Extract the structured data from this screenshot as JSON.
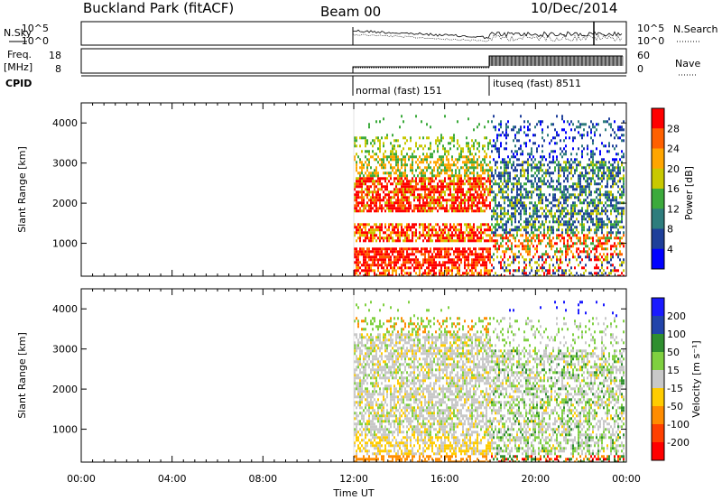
{
  "header": {
    "station": "Buckland Park (fitACF)",
    "beam": "Beam 00",
    "date": "10/Dec/2014"
  },
  "sky_panel": {
    "left_label": "N.Sky",
    "right_label": "N.Search",
    "left_ticks": [
      "10^5",
      "10^0"
    ],
    "right_ticks": [
      "10^5",
      "10^0"
    ]
  },
  "freq_panel": {
    "left_label_1": "Freq.",
    "left_label_2": "[MHz]",
    "right_label": "Nave",
    "left_ticks": [
      "18",
      "8"
    ],
    "right_ticks": [
      "60",
      "0"
    ]
  },
  "cpid": {
    "label": "CPID",
    "modes": [
      {
        "name": "normal (fast) 151"
      },
      {
        "name": "ituseq (fast) 8511"
      }
    ]
  },
  "chart_data": [
    {
      "type": "heatmap",
      "title": "Power",
      "ylabel": "Slant Range [km]",
      "xlabel": "Time UT",
      "x_ticks": [
        "00:00",
        "04:00",
        "08:00",
        "12:00",
        "16:00",
        "20:00",
        "00:00"
      ],
      "y_ticks": [
        1000,
        2000,
        3000,
        4000
      ],
      "ylim": [
        180,
        4500
      ],
      "colorbar": {
        "label": "Power [dB]",
        "ticks": [
          4,
          8,
          12,
          16,
          20,
          24,
          28
        ],
        "colors": [
          "#0000ff",
          "#1e3f9a",
          "#2e7d7d",
          "#3caa3c",
          "#c8c800",
          "#ffa500",
          "#ff6000",
          "#ff0000"
        ]
      },
      "data_start": "12:00",
      "mode_change": "18:00"
    },
    {
      "type": "heatmap",
      "title": "Velocity",
      "ylabel": "Slant Range [km]",
      "xlabel": "Time UT",
      "x_ticks": [
        "00:00",
        "04:00",
        "08:00",
        "12:00",
        "16:00",
        "20:00",
        "00:00"
      ],
      "y_ticks": [
        1000,
        2000,
        3000,
        4000
      ],
      "ylim": [
        180,
        4500
      ],
      "colorbar": {
        "label": "Velocity [m s⁻¹]",
        "ticks": [
          200,
          100,
          50,
          15,
          -15,
          -50,
          -100,
          -200
        ],
        "colors": [
          "#1a1aff",
          "#2244aa",
          "#2f8f2f",
          "#7fd040",
          "#c8c8c8",
          "#ffcc00",
          "#ff8c00",
          "#ff4000",
          "#ff0000"
        ]
      },
      "data_start": "12:00",
      "mode_change": "18:00"
    }
  ],
  "axis": {
    "x_title": "Time UT"
  }
}
